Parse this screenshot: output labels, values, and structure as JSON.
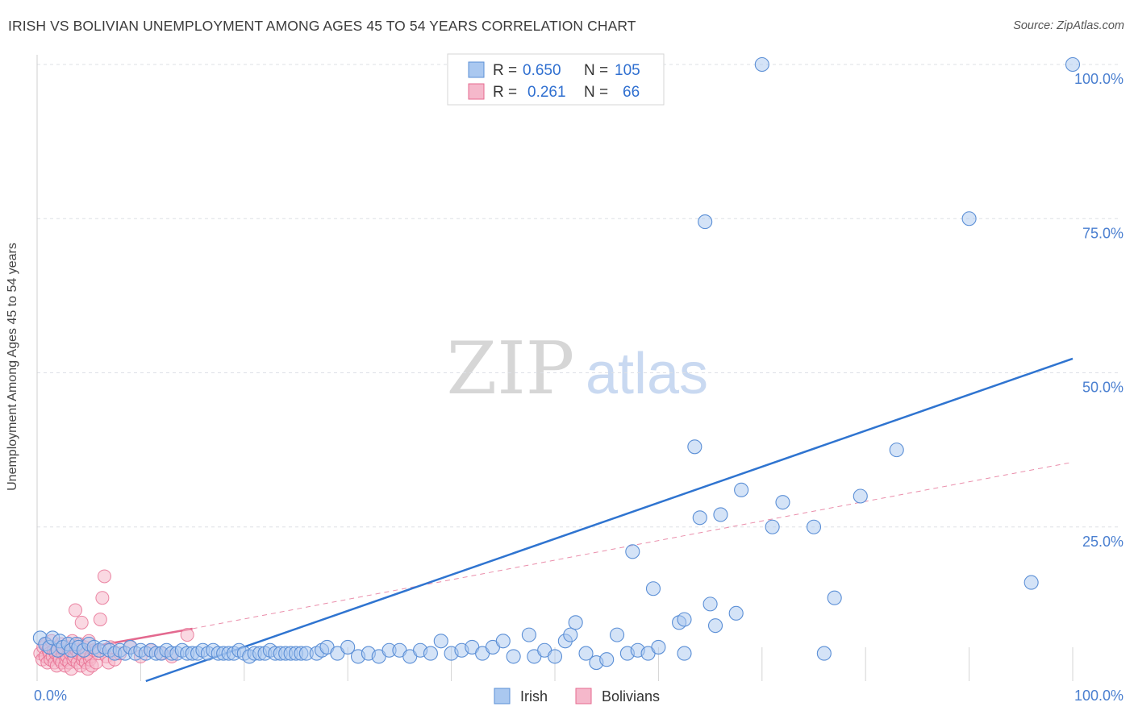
{
  "title": "IRISH VS BOLIVIAN UNEMPLOYMENT AMONG AGES 45 TO 54 YEARS CORRELATION CHART",
  "source": "Source: ZipAtlas.com",
  "watermark": {
    "zip": "ZIP",
    "atlas": "atlas"
  },
  "legend_stats": [
    {
      "r_label": "R =",
      "r_value": "0.650",
      "n_label": "N =",
      "n_value": "105",
      "color": "#aac8f0"
    },
    {
      "r_label": "R =",
      "r_value": "0.261",
      "n_label": "N =",
      "n_value": "66",
      "color": "#f5b8cb"
    }
  ],
  "colors": {
    "irish": "#5b8fd6",
    "irish_fill": "#aac8f0",
    "irish_line": "#2f74d0",
    "bolivians": "#e66a8f",
    "bolivians_fill": "#f5b8cb",
    "bolivians_line": "#e3698f",
    "tick_text": "#4a7fd0",
    "grid": "#dde0e6"
  },
  "chart_data": {
    "type": "scatter",
    "title": "IRISH VS BOLIVIAN UNEMPLOYMENT AMONG AGES 45 TO 54 YEARS CORRELATION CHART",
    "xlabel": "",
    "ylabel": "Unemployment Among Ages 45 to 54 years",
    "xlim": [
      0,
      100
    ],
    "ylim": [
      0,
      100
    ],
    "x_tick_labels": [
      "0.0%",
      "100.0%"
    ],
    "y_tick_labels": [
      "100.0%",
      "75.0%",
      "50.0%",
      "25.0%"
    ],
    "y_tick_values": [
      100,
      75,
      50,
      25
    ],
    "grid": true,
    "legend_position": "bottom-center",
    "series": [
      {
        "name": "Irish",
        "r": 0.65,
        "n": 105,
        "trend": {
          "x": [
            10.5,
            100
          ],
          "y": [
            0,
            52.3
          ]
        },
        "points": [
          [
            0.3,
            7.0
          ],
          [
            0.8,
            6.0
          ],
          [
            1.2,
            5.5
          ],
          [
            1.5,
            7.0
          ],
          [
            2.0,
            5.0
          ],
          [
            2.2,
            6.5
          ],
          [
            2.5,
            5.5
          ],
          [
            3.0,
            6.0
          ],
          [
            3.3,
            5.0
          ],
          [
            3.8,
            6.0
          ],
          [
            4.0,
            5.5
          ],
          [
            4.5,
            5.0
          ],
          [
            5.0,
            6.0
          ],
          [
            5.5,
            5.5
          ],
          [
            6.0,
            5.0
          ],
          [
            6.5,
            5.5
          ],
          [
            7.0,
            5.0
          ],
          [
            7.5,
            4.5
          ],
          [
            8.0,
            5.0
          ],
          [
            8.5,
            4.5
          ],
          [
            9.0,
            5.5
          ],
          [
            9.5,
            4.5
          ],
          [
            10.0,
            5.0
          ],
          [
            10.5,
            4.5
          ],
          [
            11.0,
            5.0
          ],
          [
            11.5,
            4.5
          ],
          [
            12.0,
            4.5
          ],
          [
            12.5,
            5.0
          ],
          [
            13.0,
            4.5
          ],
          [
            13.5,
            4.5
          ],
          [
            14.0,
            5.0
          ],
          [
            14.5,
            4.5
          ],
          [
            15.0,
            4.5
          ],
          [
            15.5,
            4.5
          ],
          [
            16.0,
            5.0
          ],
          [
            16.5,
            4.5
          ],
          [
            17.0,
            5.0
          ],
          [
            17.5,
            4.5
          ],
          [
            18.0,
            4.5
          ],
          [
            18.5,
            4.5
          ],
          [
            19.0,
            4.5
          ],
          [
            19.5,
            5.0
          ],
          [
            20.0,
            4.5
          ],
          [
            20.5,
            4.0
          ],
          [
            21.0,
            4.5
          ],
          [
            21.5,
            4.5
          ],
          [
            22.0,
            4.5
          ],
          [
            22.5,
            5.0
          ],
          [
            23.0,
            4.5
          ],
          [
            23.5,
            4.5
          ],
          [
            24.0,
            4.5
          ],
          [
            24.5,
            4.5
          ],
          [
            25.0,
            4.5
          ],
          [
            25.5,
            4.5
          ],
          [
            26.0,
            4.5
          ],
          [
            27.0,
            4.5
          ],
          [
            27.5,
            5.0
          ],
          [
            28.0,
            5.5
          ],
          [
            29.0,
            4.5
          ],
          [
            30.0,
            5.5
          ],
          [
            31.0,
            4.0
          ],
          [
            32.0,
            4.5
          ],
          [
            33.0,
            4.0
          ],
          [
            34.0,
            5.0
          ],
          [
            35.0,
            5.0
          ],
          [
            36.0,
            4.0
          ],
          [
            37.0,
            5.0
          ],
          [
            38.0,
            4.5
          ],
          [
            39.0,
            6.5
          ],
          [
            40.0,
            4.5
          ],
          [
            41.0,
            5.0
          ],
          [
            42.0,
            5.5
          ],
          [
            43.0,
            4.5
          ],
          [
            44.0,
            5.5
          ],
          [
            45.0,
            6.5
          ],
          [
            46.0,
            4.0
          ],
          [
            47.5,
            7.5
          ],
          [
            48.0,
            4.0
          ],
          [
            49.0,
            5.0
          ],
          [
            50.0,
            4.0
          ],
          [
            51.0,
            6.5
          ],
          [
            51.5,
            7.5
          ],
          [
            52.0,
            9.5
          ],
          [
            53.0,
            4.5
          ],
          [
            54.0,
            3.0
          ],
          [
            55.0,
            3.5
          ],
          [
            56.0,
            7.5
          ],
          [
            57.0,
            4.5
          ],
          [
            58.0,
            5.0
          ],
          [
            59.0,
            4.5
          ],
          [
            60.0,
            5.5
          ],
          [
            62.0,
            9.5
          ],
          [
            62.5,
            10.0
          ],
          [
            63.5,
            38.0
          ],
          [
            64.0,
            26.5
          ],
          [
            65.0,
            12.5
          ],
          [
            65.5,
            9.0
          ],
          [
            66.0,
            27.0
          ],
          [
            67.5,
            11.0
          ],
          [
            68.0,
            31.0
          ],
          [
            71.0,
            25.0
          ],
          [
            72.0,
            29.0
          ],
          [
            75.0,
            25.0
          ],
          [
            76.0,
            4.5
          ],
          [
            77.0,
            13.5
          ],
          [
            79.5,
            30.0
          ],
          [
            83.0,
            37.5
          ],
          [
            90.0,
            75.0
          ],
          [
            96.0,
            16.0
          ],
          [
            100.0,
            100.0
          ],
          [
            62.5,
            4.5
          ],
          [
            64.5,
            74.5
          ],
          [
            70.0,
            100.0
          ],
          [
            57.5,
            21.0
          ],
          [
            59.5,
            15.0
          ]
        ]
      },
      {
        "name": "Bolivians",
        "r": 0.261,
        "n": 66,
        "trend_solid": {
          "x": [
            0,
            15
          ],
          "y": [
            4.0,
            8.5
          ]
        },
        "trend_dashed": {
          "x": [
            15,
            100
          ],
          "y": [
            8.5,
            35.5
          ]
        },
        "points": [
          [
            0.3,
            4.5
          ],
          [
            0.5,
            3.5
          ],
          [
            0.6,
            5.5
          ],
          [
            0.8,
            4.0
          ],
          [
            0.9,
            6.0
          ],
          [
            1.0,
            3.0
          ],
          [
            1.1,
            5.0
          ],
          [
            1.2,
            4.5
          ],
          [
            1.3,
            3.5
          ],
          [
            1.4,
            6.5
          ],
          [
            1.5,
            4.0
          ],
          [
            1.6,
            5.0
          ],
          [
            1.7,
            3.0
          ],
          [
            1.8,
            4.5
          ],
          [
            1.9,
            2.5
          ],
          [
            2.0,
            5.5
          ],
          [
            2.1,
            4.0
          ],
          [
            2.2,
            3.5
          ],
          [
            2.3,
            6.0
          ],
          [
            2.4,
            3.0
          ],
          [
            2.5,
            4.5
          ],
          [
            2.6,
            5.0
          ],
          [
            2.7,
            2.5
          ],
          [
            2.8,
            3.5
          ],
          [
            2.9,
            4.0
          ],
          [
            3.0,
            5.5
          ],
          [
            3.1,
            3.0
          ],
          [
            3.2,
            4.5
          ],
          [
            3.3,
            2.0
          ],
          [
            3.4,
            6.5
          ],
          [
            3.5,
            3.5
          ],
          [
            3.6,
            4.0
          ],
          [
            3.7,
            11.5
          ],
          [
            3.8,
            5.0
          ],
          [
            3.9,
            3.0
          ],
          [
            4.0,
            4.5
          ],
          [
            4.1,
            6.0
          ],
          [
            4.2,
            2.5
          ],
          [
            4.3,
            9.5
          ],
          [
            4.4,
            3.5
          ],
          [
            4.5,
            4.0
          ],
          [
            4.6,
            5.5
          ],
          [
            4.7,
            3.0
          ],
          [
            4.8,
            4.5
          ],
          [
            4.9,
            2.0
          ],
          [
            5.0,
            6.5
          ],
          [
            5.1,
            3.5
          ],
          [
            5.2,
            4.0
          ],
          [
            5.3,
            2.5
          ],
          [
            5.5,
            5.0
          ],
          [
            5.7,
            3.0
          ],
          [
            5.9,
            4.5
          ],
          [
            6.1,
            10.0
          ],
          [
            6.3,
            13.5
          ],
          [
            6.5,
            17.0
          ],
          [
            6.7,
            4.0
          ],
          [
            6.9,
            3.0
          ],
          [
            7.1,
            5.5
          ],
          [
            7.5,
            3.5
          ],
          [
            8.0,
            4.5
          ],
          [
            9.0,
            5.5
          ],
          [
            10.0,
            4.0
          ],
          [
            11.0,
            5.0
          ],
          [
            12.0,
            4.5
          ],
          [
            13.0,
            4.0
          ],
          [
            14.5,
            7.5
          ]
        ]
      }
    ]
  }
}
